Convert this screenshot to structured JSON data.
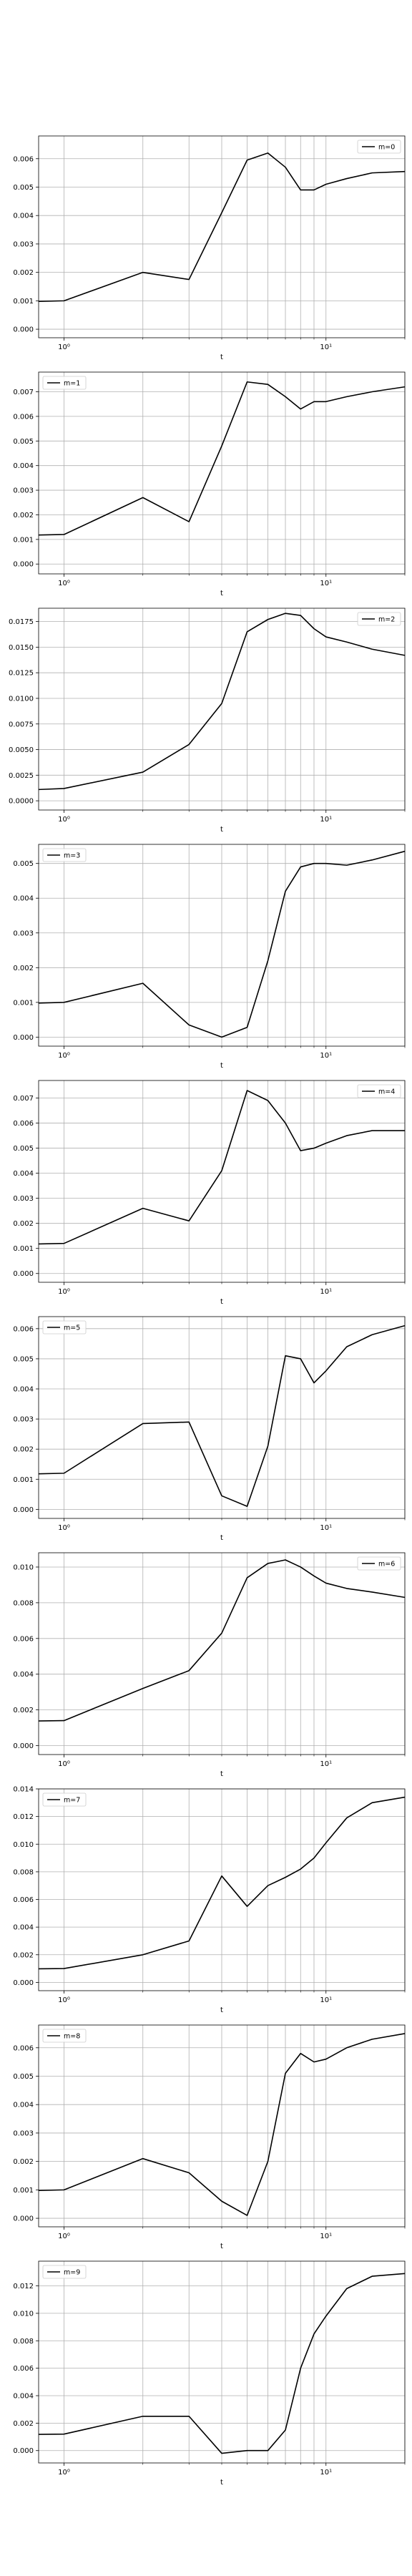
{
  "chart_data": [
    {
      "type": "line",
      "xscale": "log",
      "xlim": [
        0.8,
        20
      ],
      "xlabel": "t",
      "ylim": [
        -0.0003,
        0.0068
      ],
      "yticks": [
        0.0,
        0.001,
        0.002,
        0.003,
        0.004,
        0.005,
        0.006
      ],
      "yticklabels": [
        "0.000",
        "0.001",
        "0.002",
        "0.003",
        "0.004",
        "0.005",
        "0.006"
      ],
      "xticks": [
        1,
        10
      ],
      "xticklabels": [
        "10⁰",
        "10¹"
      ],
      "legend_loc": "upper-right",
      "grid": true,
      "series": [
        {
          "name": "m=0",
          "color": "#000000",
          "x": [
            0.8,
            1,
            2,
            3,
            4,
            5,
            6,
            7,
            8,
            9,
            10,
            12,
            15,
            20
          ],
          "y": [
            0.00098,
            0.001,
            0.002,
            0.00175,
            0.0041,
            0.00595,
            0.0062,
            0.0057,
            0.0049,
            0.0049,
            0.0051,
            0.0053,
            0.0055,
            0.00555
          ]
        }
      ]
    },
    {
      "type": "line",
      "xscale": "log",
      "xlim": [
        0.8,
        20
      ],
      "xlabel": "t",
      "ylim": [
        -0.0004,
        0.0078
      ],
      "yticks": [
        0.0,
        0.001,
        0.002,
        0.003,
        0.004,
        0.005,
        0.006,
        0.007
      ],
      "yticklabels": [
        "0.000",
        "0.001",
        "0.002",
        "0.003",
        "0.004",
        "0.005",
        "0.006",
        "0.007"
      ],
      "xticks": [
        1,
        10
      ],
      "xticklabels": [
        "10⁰",
        "10¹"
      ],
      "legend_loc": "upper-left",
      "grid": true,
      "series": [
        {
          "name": "m=1",
          "color": "#000000",
          "x": [
            0.8,
            1,
            2,
            3,
            4,
            5,
            6,
            7,
            8,
            9,
            10,
            12,
            15,
            20
          ],
          "y": [
            0.00118,
            0.0012,
            0.0027,
            0.00172,
            0.0048,
            0.0074,
            0.0073,
            0.0068,
            0.0063,
            0.0066,
            0.0066,
            0.0068,
            0.007,
            0.0072
          ]
        }
      ]
    },
    {
      "type": "line",
      "xscale": "log",
      "xlim": [
        0.8,
        20
      ],
      "xlabel": "t",
      "ylim": [
        -0.0009,
        0.0188
      ],
      "yticks": [
        0.0,
        0.0025,
        0.005,
        0.0075,
        0.01,
        0.0125,
        0.015,
        0.0175
      ],
      "yticklabels": [
        "0.0000",
        "0.0025",
        "0.0050",
        "0.0075",
        "0.0100",
        "0.0125",
        "0.0150",
        "0.0175"
      ],
      "xticks": [
        1,
        10
      ],
      "xticklabels": [
        "10⁰",
        "10¹"
      ],
      "legend_loc": "upper-right",
      "grid": true,
      "series": [
        {
          "name": "m=2",
          "color": "#000000",
          "x": [
            0.8,
            1,
            2,
            3,
            4,
            5,
            6,
            7,
            8,
            9,
            10,
            12,
            15,
            20
          ],
          "y": [
            0.0011,
            0.0012,
            0.0028,
            0.0055,
            0.0095,
            0.0165,
            0.0177,
            0.0183,
            0.0181,
            0.0168,
            0.016,
            0.0155,
            0.0148,
            0.0142
          ]
        }
      ]
    },
    {
      "type": "line",
      "xscale": "log",
      "xlim": [
        0.8,
        20
      ],
      "xlabel": "t",
      "ylim": [
        -0.00026,
        0.00555
      ],
      "yticks": [
        0.0,
        0.001,
        0.002,
        0.003,
        0.004,
        0.005
      ],
      "yticklabels": [
        "0.000",
        "0.001",
        "0.002",
        "0.003",
        "0.004",
        "0.005"
      ],
      "xticks": [
        1,
        10
      ],
      "xticklabels": [
        "10⁰",
        "10¹"
      ],
      "legend_loc": "upper-left",
      "grid": true,
      "series": [
        {
          "name": "m=3",
          "color": "#000000",
          "x": [
            0.8,
            1,
            2,
            3,
            4,
            5,
            6,
            7,
            8,
            9,
            10,
            12,
            15,
            20
          ],
          "y": [
            0.00098,
            0.001,
            0.00155,
            0.00035,
            0.0,
            0.00028,
            0.0022,
            0.0042,
            0.0049,
            0.005,
            0.005,
            0.00495,
            0.0051,
            0.00535
          ]
        }
      ]
    },
    {
      "type": "line",
      "xscale": "log",
      "xlim": [
        0.8,
        20
      ],
      "xlabel": "t",
      "ylim": [
        -0.00035,
        0.0077
      ],
      "yticks": [
        0.0,
        0.001,
        0.002,
        0.003,
        0.004,
        0.005,
        0.006,
        0.007
      ],
      "yticklabels": [
        "0.000",
        "0.001",
        "0.002",
        "0.003",
        "0.004",
        "0.005",
        "0.006",
        "0.007"
      ],
      "xticks": [
        1,
        10
      ],
      "xticklabels": [
        "10⁰",
        "10¹"
      ],
      "legend_loc": "upper-right",
      "grid": true,
      "series": [
        {
          "name": "m=4",
          "color": "#000000",
          "x": [
            0.8,
            1,
            2,
            3,
            4,
            5,
            6,
            7,
            8,
            9,
            10,
            12,
            15,
            20
          ],
          "y": [
            0.00118,
            0.0012,
            0.0026,
            0.0021,
            0.0041,
            0.0073,
            0.0069,
            0.006,
            0.0049,
            0.005,
            0.0052,
            0.0055,
            0.0057,
            0.0057
          ]
        }
      ]
    },
    {
      "type": "line",
      "xscale": "log",
      "xlim": [
        0.8,
        20
      ],
      "xlabel": "t",
      "ylim": [
        -0.0003,
        0.0064
      ],
      "yticks": [
        0.0,
        0.001,
        0.002,
        0.003,
        0.004,
        0.005,
        0.006
      ],
      "yticklabels": [
        "0.000",
        "0.001",
        "0.002",
        "0.003",
        "0.004",
        "0.005",
        "0.006"
      ],
      "xticks": [
        1,
        10
      ],
      "xticklabels": [
        "10⁰",
        "10¹"
      ],
      "legend_loc": "upper-left",
      "grid": true,
      "series": [
        {
          "name": "m=5",
          "color": "#000000",
          "x": [
            0.8,
            1,
            2,
            3,
            4,
            5,
            6,
            7,
            8,
            9,
            10,
            12,
            15,
            20
          ],
          "y": [
            0.00118,
            0.0012,
            0.00285,
            0.0029,
            0.00045,
            0.0001,
            0.0021,
            0.0051,
            0.005,
            0.0042,
            0.0046,
            0.0054,
            0.0058,
            0.0061
          ]
        }
      ]
    },
    {
      "type": "line",
      "xscale": "log",
      "xlim": [
        0.8,
        20
      ],
      "xlabel": "t",
      "ylim": [
        -0.0005,
        0.0108
      ],
      "yticks": [
        0.0,
        0.002,
        0.004,
        0.006,
        0.008,
        0.01
      ],
      "yticklabels": [
        "0.000",
        "0.002",
        "0.004",
        "0.006",
        "0.008",
        "0.010"
      ],
      "xticks": [
        1,
        10
      ],
      "xticklabels": [
        "10⁰",
        "10¹"
      ],
      "legend_loc": "upper-right",
      "grid": true,
      "series": [
        {
          "name": "m=6",
          "color": "#000000",
          "x": [
            0.8,
            1,
            2,
            3,
            4,
            5,
            6,
            7,
            8,
            9,
            10,
            12,
            15,
            20
          ],
          "y": [
            0.00138,
            0.0014,
            0.0032,
            0.0042,
            0.0063,
            0.0094,
            0.0102,
            0.0104,
            0.01,
            0.0095,
            0.0091,
            0.0088,
            0.0086,
            0.0083
          ]
        }
      ]
    },
    {
      "type": "line",
      "xscale": "log",
      "xlim": [
        0.8,
        20
      ],
      "xlabel": "t",
      "ylim": [
        -0.0006,
        0.014
      ],
      "yticks": [
        0.0,
        0.002,
        0.004,
        0.006,
        0.008,
        0.01,
        0.012,
        0.014
      ],
      "yticklabels": [
        "0.000",
        "0.002",
        "0.004",
        "0.006",
        "0.008",
        "0.010",
        "0.012",
        "0.014"
      ],
      "xticks": [
        1,
        10
      ],
      "xticklabels": [
        "10⁰",
        "10¹"
      ],
      "legend_loc": "upper-left",
      "grid": true,
      "series": [
        {
          "name": "m=7",
          "color": "#000000",
          "x": [
            0.8,
            1,
            2,
            3,
            4,
            5,
            6,
            7,
            8,
            9,
            10,
            12,
            15,
            20
          ],
          "y": [
            0.00098,
            0.001,
            0.002,
            0.003,
            0.0077,
            0.0055,
            0.007,
            0.0076,
            0.0082,
            0.009,
            0.0101,
            0.0119,
            0.013,
            0.0134
          ]
        }
      ]
    },
    {
      "type": "line",
      "xscale": "log",
      "xlim": [
        0.8,
        20
      ],
      "xlabel": "t",
      "ylim": [
        -0.0003,
        0.0068
      ],
      "yticks": [
        0.0,
        0.001,
        0.002,
        0.003,
        0.004,
        0.005,
        0.006
      ],
      "yticklabels": [
        "0.000",
        "0.001",
        "0.002",
        "0.003",
        "0.004",
        "0.005",
        "0.006"
      ],
      "xticks": [
        1,
        10
      ],
      "xticklabels": [
        "10⁰",
        "10¹"
      ],
      "legend_loc": "upper-left",
      "grid": true,
      "series": [
        {
          "name": "m=8",
          "color": "#000000",
          "x": [
            0.8,
            1,
            2,
            3,
            4,
            5,
            6,
            7,
            8,
            9,
            10,
            12,
            15,
            20
          ],
          "y": [
            0.00098,
            0.001,
            0.0021,
            0.0016,
            0.0006,
            0.0001,
            0.002,
            0.0051,
            0.0058,
            0.0055,
            0.0056,
            0.006,
            0.0063,
            0.0065
          ]
        }
      ]
    },
    {
      "type": "line",
      "xscale": "log",
      "xlim": [
        0.8,
        20
      ],
      "xlabel": "t",
      "ylim": [
        -0.0009,
        0.0138
      ],
      "yticks": [
        0.0,
        0.002,
        0.004,
        0.006,
        0.008,
        0.01,
        0.012
      ],
      "yticklabels": [
        "0.000",
        "0.002",
        "0.004",
        "0.006",
        "0.008",
        "0.010",
        "0.012"
      ],
      "xticks": [
        1,
        10
      ],
      "xticklabels": [
        "10⁰",
        "10¹"
      ],
      "legend_loc": "upper-left",
      "grid": true,
      "series": [
        {
          "name": "m=9",
          "color": "#000000",
          "x": [
            0.8,
            1,
            2,
            3,
            4,
            5,
            6,
            7,
            8,
            9,
            10,
            12,
            15,
            20
          ],
          "y": [
            0.00118,
            0.0012,
            0.0025,
            0.0025,
            -0.0002,
            0.0,
            0.0,
            0.0015,
            0.006,
            0.0085,
            0.0098,
            0.0118,
            0.0127,
            0.0129
          ]
        }
      ]
    }
  ]
}
